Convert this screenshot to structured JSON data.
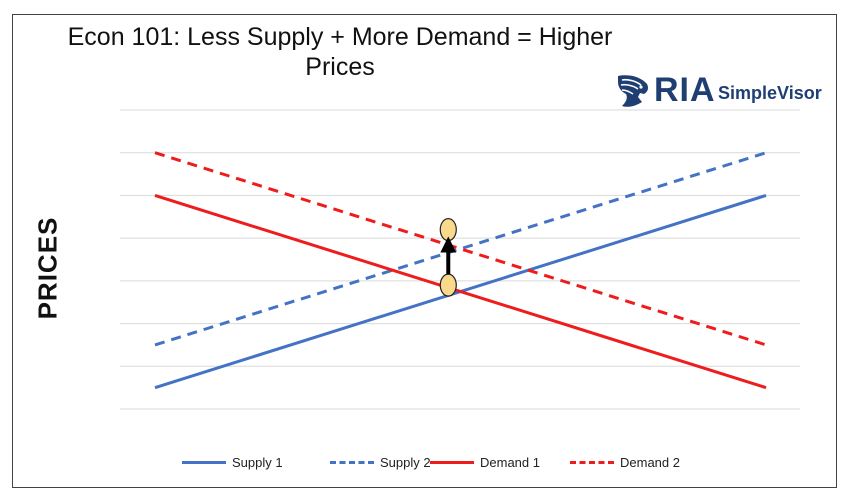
{
  "chart_data": {
    "type": "line",
    "title": "Econ 101: Less Supply + More Demand = Higher Prices",
    "ylabel": "PRICES",
    "xlabel": "",
    "xlim": [
      0,
      10
    ],
    "ylim": [
      0,
      7
    ],
    "grid": true,
    "legend_position": "bottom",
    "series": [
      {
        "name": "Supply 1",
        "color": "#4472c4",
        "style": "solid",
        "x": [
          0,
          10
        ],
        "y": [
          0.5,
          5.0
        ]
      },
      {
        "name": "Supply 2",
        "color": "#4472c4",
        "style": "dashed",
        "x": [
          0,
          10
        ],
        "y": [
          1.5,
          6.0
        ]
      },
      {
        "name": "Demand 1",
        "color": "#ee1c1c",
        "style": "solid",
        "x": [
          0,
          10
        ],
        "y": [
          5.0,
          0.5
        ]
      },
      {
        "name": "Demand 2",
        "color": "#ee1c1c",
        "style": "dashed",
        "x": [
          0,
          10
        ],
        "y": [
          6.0,
          1.5
        ]
      }
    ],
    "annotations": [
      {
        "type": "point",
        "x": 4.8,
        "y": 2.9,
        "color": "#fbd98c"
      },
      {
        "type": "point",
        "x": 4.8,
        "y": 4.2,
        "color": "#fbd98c"
      },
      {
        "type": "arrow",
        "x": 4.8,
        "from_y": 3.15,
        "to_y": 3.85,
        "direction": "up"
      }
    ]
  },
  "logo": {
    "name": "RIA",
    "subname": "SimpleVisor",
    "icon": "eagle-head-icon",
    "color": "#1f3f73"
  }
}
